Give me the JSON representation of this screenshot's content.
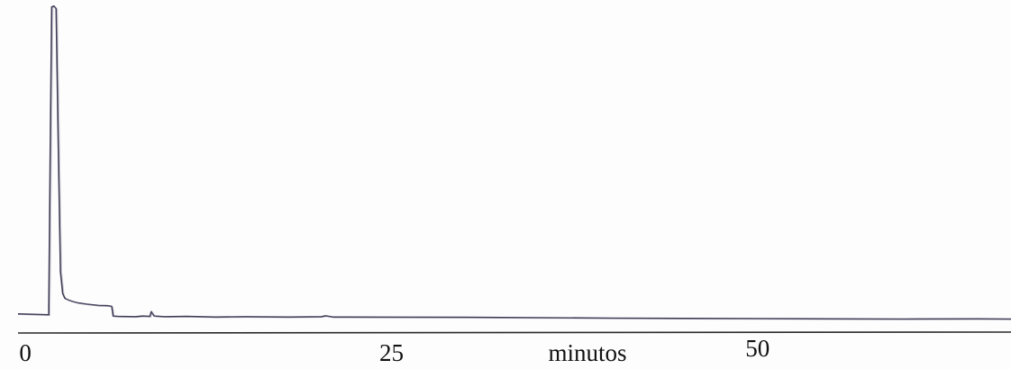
{
  "chart_data": {
    "type": "line",
    "title": "",
    "xlabel": "minutos",
    "ylabel": "",
    "xlim": [
      -0.5,
      67.3
    ],
    "ylim": [
      0,
      100
    ],
    "grid": false,
    "x_ticks": [
      {
        "value": 0,
        "label": "0"
      },
      {
        "value": 25,
        "label": "25"
      },
      {
        "value": 50,
        "label": "50"
      }
    ],
    "series": [
      {
        "color": "#3d3a55",
        "x": [
          -0.5,
          1.6,
          1.7,
          1.8,
          1.95,
          2.1,
          2.25,
          2.4,
          2.55,
          2.7,
          2.9,
          3.2,
          3.6,
          4.2,
          5.0,
          5.6,
          5.9,
          6.0,
          6.3,
          7.5,
          8.0,
          8.5,
          8.6,
          8.8,
          9.5,
          11,
          13,
          15,
          18,
          20.2,
          20.5,
          21,
          25,
          30,
          35,
          40,
          45,
          50,
          55,
          60,
          65,
          67.3
        ],
        "y": [
          1.5,
          1.2,
          55,
          99.5,
          99.8,
          99,
          55,
          15,
          8,
          6.5,
          6.0,
          5.5,
          5.0,
          4.6,
          4.2,
          4.1,
          3.9,
          0.8,
          0.7,
          0.6,
          0.8,
          0.7,
          2.2,
          0.8,
          0.6,
          0.7,
          0.5,
          0.6,
          0.5,
          0.6,
          0.9,
          0.5,
          0.45,
          0.4,
          0.3,
          0.15,
          0.05,
          0.0,
          -0.1,
          -0.15,
          -0.1,
          -0.15
        ]
      }
    ]
  }
}
